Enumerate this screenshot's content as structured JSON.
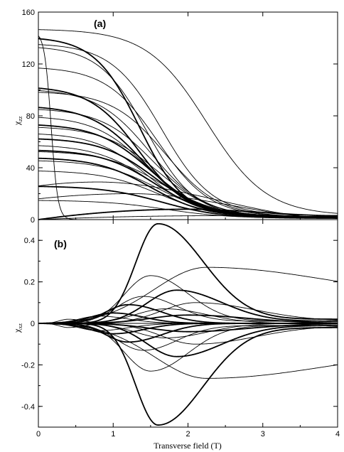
{
  "chart_data": [
    {
      "type": "line",
      "panel_label": "(a)",
      "ylabel": "χ",
      "ylabel_sub": "zz",
      "xlim": [
        0,
        4
      ],
      "ylim": [
        0,
        160
      ],
      "x_ticks": [
        "0",
        "1",
        "2",
        "3",
        "4"
      ],
      "y_ticks": [
        "0",
        "40",
        "80",
        "120",
        "160"
      ],
      "grid": false,
      "series": [
        {
          "start": 147,
          "midpoint": 2.25,
          "width": 0.4,
          "tail": 3,
          "weight": "thin"
        },
        {
          "start": 145,
          "midpoint": 0.17,
          "width": 0.045,
          "tail": 0,
          "weight": "thin"
        },
        {
          "start": 141,
          "midpoint": 1.35,
          "width": 0.3,
          "tail": 2,
          "weight": "thick"
        },
        {
          "start": 136,
          "midpoint": 1.65,
          "width": 0.34,
          "tail": 3,
          "weight": "thin"
        },
        {
          "start": 134,
          "midpoint": 1.45,
          "width": 0.32,
          "tail": 2,
          "weight": "thin"
        },
        {
          "start": 118,
          "midpoint": 1.6,
          "width": 0.35,
          "tail": 2,
          "weight": "thin"
        },
        {
          "start": 103,
          "midpoint": 1.35,
          "width": 0.33,
          "tail": 2,
          "weight": "thick"
        },
        {
          "start": 101,
          "midpoint": 1.5,
          "width": 0.36,
          "tail": 2,
          "weight": "thin"
        },
        {
          "start": 99,
          "midpoint": 1.7,
          "width": 0.36,
          "tail": 2,
          "weight": "thin"
        },
        {
          "start": 88,
          "midpoint": 1.4,
          "width": 0.35,
          "tail": 2,
          "weight": "thick"
        },
        {
          "start": 86,
          "midpoint": 1.55,
          "width": 0.36,
          "tail": 2,
          "weight": "thin"
        },
        {
          "start": 80,
          "midpoint": 1.45,
          "width": 0.35,
          "tail": 2,
          "weight": "thin"
        },
        {
          "start": 74,
          "midpoint": 1.5,
          "width": 0.36,
          "tail": 2,
          "weight": "thick"
        },
        {
          "start": 72,
          "midpoint": 1.6,
          "width": 0.37,
          "tail": 2,
          "weight": "thin"
        },
        {
          "start": 67,
          "midpoint": 1.45,
          "width": 0.35,
          "tail": 2,
          "weight": "thin"
        },
        {
          "start": 63,
          "midpoint": 1.55,
          "width": 0.36,
          "tail": 2,
          "weight": "thick"
        },
        {
          "start": 58,
          "midpoint": 1.5,
          "width": 0.37,
          "tail": 2,
          "weight": "thin"
        },
        {
          "start": 54,
          "midpoint": 1.55,
          "width": 0.36,
          "tail": 2,
          "weight": "thick"
        },
        {
          "start": 53,
          "midpoint": 1.65,
          "width": 0.38,
          "tail": 2,
          "weight": "thin"
        },
        {
          "start": 48,
          "midpoint": 1.5,
          "width": 0.36,
          "tail": 2,
          "weight": "thick"
        },
        {
          "start": 46,
          "midpoint": 1.6,
          "width": 0.38,
          "tail": 2,
          "weight": "thin"
        },
        {
          "start": 38,
          "midpoint": 1.6,
          "width": 0.38,
          "tail": 2,
          "weight": "thin"
        },
        {
          "start": 26,
          "midpoint": 1.65,
          "width": 0.4,
          "tail": 1,
          "weight": "thick"
        },
        {
          "start": 15,
          "midpoint": 1.7,
          "width": 0.42,
          "tail": 1,
          "weight": "thin"
        }
      ],
      "bumps": [
        {
          "start": 26,
          "peak_x": 0.8,
          "peak": 29,
          "end": 1,
          "weight": "thin"
        },
        {
          "start": 16,
          "peak_x": 1.25,
          "peak": 20,
          "end": 1,
          "weight": "thin"
        },
        {
          "start": 0,
          "peak_x": 2.0,
          "peak": 8,
          "end": 3,
          "weight": "thick"
        },
        {
          "start": 0,
          "peak_x": 2.4,
          "peak": 3,
          "end": 2,
          "weight": "thin"
        }
      ]
    },
    {
      "type": "line",
      "panel_label": "(b)",
      "ylabel": "χ",
      "ylabel_sub": "xz",
      "xlabel": "Transverse field (T)",
      "xlim": [
        0,
        4
      ],
      "ylim": [
        -0.5,
        0.5
      ],
      "x_ticks": [
        "0",
        "1",
        "2",
        "3",
        "4"
      ],
      "y_ticks": [
        "0.4",
        "0.2",
        "0",
        "-0.2",
        "-0.4"
      ],
      "grid": false,
      "series": [
        {
          "peak_x": 1.6,
          "peak": 0.48,
          "sigma": 0.3,
          "sigma_tail": 0.6,
          "tail": 0.02,
          "weight": "thick"
        },
        {
          "peak_x": 1.6,
          "peak": -0.49,
          "sigma": 0.3,
          "sigma_tail": 0.6,
          "tail": -0.02,
          "weight": "thick"
        },
        {
          "peak_x": 2.25,
          "peak": 0.27,
          "sigma": 0.7,
          "sigma_tail": 1.6,
          "tail": 0.12,
          "weight": "thin"
        },
        {
          "peak_x": 2.25,
          "peak": -0.265,
          "sigma": 0.7,
          "sigma_tail": 1.6,
          "tail": -0.12,
          "weight": "thin"
        },
        {
          "peak_x": 1.5,
          "peak": 0.23,
          "sigma": 0.35,
          "sigma_tail": 0.5,
          "tail": 0.01,
          "weight": "thin"
        },
        {
          "peak_x": 1.5,
          "peak": -0.23,
          "sigma": 0.35,
          "sigma_tail": 0.5,
          "tail": -0.01,
          "weight": "thin"
        },
        {
          "peak_x": 1.85,
          "peak": 0.16,
          "sigma": 0.4,
          "sigma_tail": 0.6,
          "tail": 0.01,
          "weight": "thick"
        },
        {
          "peak_x": 1.85,
          "peak": -0.16,
          "sigma": 0.4,
          "sigma_tail": 0.6,
          "tail": -0.01,
          "weight": "thick"
        },
        {
          "peak_x": 1.4,
          "peak": 0.13,
          "sigma": 0.35,
          "sigma_tail": 0.45,
          "tail": 0.01,
          "weight": "thin"
        },
        {
          "peak_x": 1.4,
          "peak": -0.13,
          "sigma": 0.35,
          "sigma_tail": 0.45,
          "tail": -0.01,
          "weight": "thin"
        },
        {
          "peak_x": 2.1,
          "peak": 0.1,
          "sigma": 0.45,
          "sigma_tail": 0.8,
          "tail": 0.01,
          "weight": "thin"
        },
        {
          "peak_x": 2.1,
          "peak": -0.1,
          "sigma": 0.45,
          "sigma_tail": 0.8,
          "tail": -0.01,
          "weight": "thin"
        },
        {
          "peak_x": 1.2,
          "peak": 0.09,
          "sigma": 0.3,
          "sigma_tail": 0.45,
          "tail": 0.0,
          "weight": "thick"
        },
        {
          "peak_x": 1.2,
          "peak": -0.09,
          "sigma": 0.3,
          "sigma_tail": 0.45,
          "tail": 0.0,
          "weight": "thick"
        },
        {
          "peak_x": 1.7,
          "peak": 0.07,
          "sigma": 0.4,
          "sigma_tail": 0.55,
          "tail": 0.0,
          "weight": "thin"
        },
        {
          "peak_x": 1.7,
          "peak": -0.07,
          "sigma": 0.4,
          "sigma_tail": 0.55,
          "tail": 0.0,
          "weight": "thin"
        },
        {
          "peak_x": 1.0,
          "peak": 0.05,
          "sigma": 0.3,
          "sigma_tail": 0.4,
          "tail": 0.0,
          "weight": "thick"
        },
        {
          "peak_x": 1.0,
          "peak": -0.05,
          "sigma": 0.3,
          "sigma_tail": 0.4,
          "tail": 0.0,
          "weight": "thick"
        },
        {
          "peak_x": 0.8,
          "peak": 0.035,
          "sigma": 0.25,
          "sigma_tail": 0.4,
          "tail": 0.0,
          "weight": "thin"
        },
        {
          "peak_x": 0.8,
          "peak": -0.035,
          "sigma": 0.25,
          "sigma_tail": 0.4,
          "tail": 0.0,
          "weight": "thin"
        },
        {
          "peak_x": 2.0,
          "peak": 0.04,
          "sigma": 0.5,
          "sigma_tail": 0.8,
          "tail": 0.0,
          "weight": "thick"
        },
        {
          "peak_x": 2.0,
          "peak": -0.04,
          "sigma": 0.5,
          "sigma_tail": 0.8,
          "tail": 0.0,
          "weight": "thick"
        },
        {
          "peak_x": 0.4,
          "peak": 0.02,
          "sigma": 0.12,
          "sigma_tail": 0.2,
          "tail": 0.0,
          "weight": "thin"
        },
        {
          "peak_x": 0.4,
          "peak": -0.02,
          "sigma": 0.12,
          "sigma_tail": 0.2,
          "tail": 0.0,
          "weight": "thin"
        }
      ]
    }
  ]
}
